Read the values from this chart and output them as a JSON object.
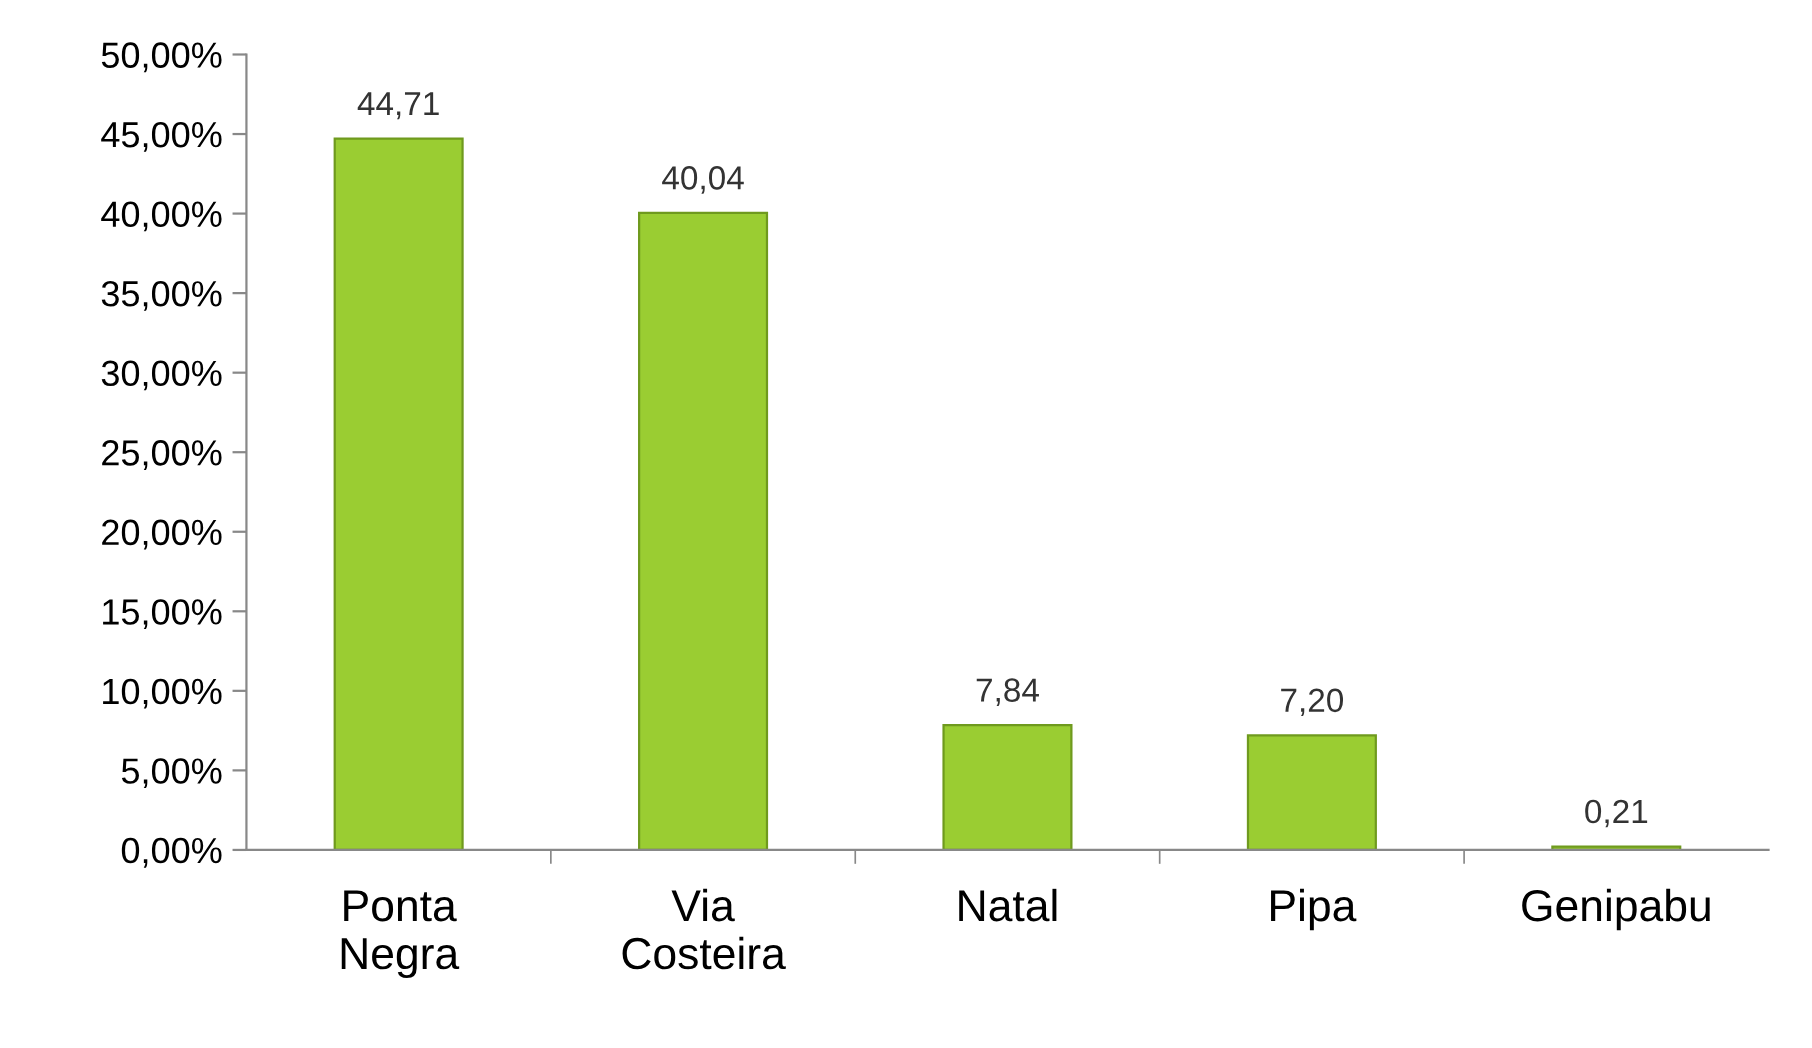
{
  "chart_data": {
    "type": "bar",
    "categories": [
      "Ponta\nNegra",
      "Via\nCosteira",
      "Natal",
      "Pipa",
      "Genipabu"
    ],
    "values": [
      44.71,
      40.04,
      7.84,
      7.2,
      0.21
    ],
    "value_labels": [
      "44,71",
      "40,04",
      "7,84",
      "7,20",
      "0,21"
    ],
    "color": "#9acd32",
    "ylim": [
      0,
      50
    ],
    "yticks": [
      {
        "value": 0,
        "label": "0,00%"
      },
      {
        "value": 5,
        "label": "5,00%"
      },
      {
        "value": 10,
        "label": "10,00%"
      },
      {
        "value": 15,
        "label": "15,00%"
      },
      {
        "value": 20,
        "label": "20,00%"
      },
      {
        "value": 25,
        "label": "25,00%"
      },
      {
        "value": 30,
        "label": "30,00%"
      },
      {
        "value": 35,
        "label": "35,00%"
      },
      {
        "value": 40,
        "label": "40,00%"
      },
      {
        "value": 45,
        "label": "45,00%"
      },
      {
        "value": 50,
        "label": "50,00%"
      }
    ],
    "grid": false,
    "legend": false
  }
}
